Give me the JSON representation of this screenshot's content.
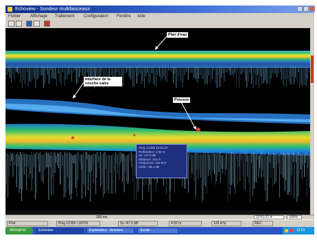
{
  "window": {
    "title": "Echoview - Sondeur multifaisceaux",
    "menu": [
      "Fichier",
      "Affichage",
      "Traitement",
      "Configuration",
      "Fenêtre",
      "Aide"
    ]
  },
  "toolbar": {
    "tools": [
      "zoom-in-icon",
      "zoom-out-icon",
      "grid-icon",
      "ping-icon",
      "red-tool-icon"
    ]
  },
  "annotations": {
    "surface": "Plan d'eau",
    "interface": "Interface de la couche salée",
    "fish": "Poisson"
  },
  "info_panel": {
    "lines": [
      "Ping: 12356  12:51:27",
      "Profondeur: 4.82 m",
      "Sv: -47.3 dB",
      "Distance: 152 m",
      "Fréquence: 120 kHz",
      "Cible: -38.4 dB"
    ]
  },
  "hscroll": {
    "label": "200 ms",
    "time_value": "12:51:27.4",
    "zoom_value": "100%"
  },
  "status": {
    "cells": [
      "Prêt",
      "Ping 12356 / 18720",
      "Sv -47.3 dB",
      "4.82 m",
      "120 kHz",
      "REC"
    ]
  },
  "taskbar": {
    "start_label": "démarrer",
    "tasks": [
      "Echoview",
      "Explorateur - données",
      "Sonde"
    ],
    "clock": "12:51"
  },
  "colors": {
    "echogram_background": "#000000",
    "title_bar": "#0a2a8c",
    "info_panel": "#1f2f7e",
    "taskbar": "#2a56c4"
  }
}
